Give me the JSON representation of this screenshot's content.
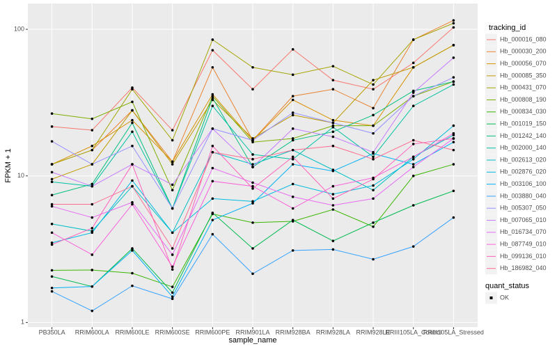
{
  "chart_data": {
    "type": "line",
    "log_y": true,
    "grid": true,
    "x_label": "sample_name",
    "y_label": "FPKM + 1",
    "legend_title": "tracking_id",
    "legend_position": "right",
    "shape_legend_title": "quant_status",
    "shape_legend_entries": [
      "OK"
    ],
    "categories": [
      "PB350LA",
      "RRIM600LA",
      "RRIM600LE",
      "RRIM600SE",
      "RRIM600PE",
      "RRIM901LA",
      "RRIM928BA",
      "RRIM928LA",
      "RRIM928LE",
      "RRIII105LA_Control",
      "RRIII105LA_Stressed"
    ],
    "ylim": [
      0.93,
      150
    ],
    "yticks": [
      1,
      10,
      100
    ],
    "series": [
      {
        "name": "Hb_000016_080",
        "color": "#F8766D",
        "values": [
          21.7,
          20.5,
          40,
          20.5,
          72,
          39,
          73,
          45,
          39,
          59,
          103
        ]
      },
      {
        "name": "Hb_000030_200",
        "color": "#EA8331",
        "values": [
          12,
          15,
          28,
          12.5,
          55,
          17.5,
          35,
          39,
          29,
          85,
          115
        ]
      },
      {
        "name": "Hb_000056_070",
        "color": "#D89000",
        "values": [
          12,
          16,
          24,
          12.5,
          36,
          17.5,
          33,
          24,
          22,
          55,
          78
        ]
      },
      {
        "name": "Hb_000085_350",
        "color": "#C09B00",
        "values": [
          9.5,
          12,
          28,
          12,
          33,
          18,
          26,
          23,
          45,
          55,
          78
        ]
      },
      {
        "name": "Hb_000431_070",
        "color": "#A3A500",
        "values": [
          12,
          15,
          39,
          17.5,
          85,
          55,
          49,
          56,
          42,
          85,
          110
        ]
      },
      {
        "name": "Hb_000808_190",
        "color": "#7CAE00",
        "values": [
          26.6,
          24.5,
          32,
          8,
          35,
          17,
          18,
          22,
          22,
          35,
          44
        ]
      },
      {
        "name": "Hb_000834_030",
        "color": "#39B600",
        "values": [
          2.27,
          2.28,
          2.17,
          1.75,
          5.5,
          4.8,
          4.9,
          5.9,
          4.5,
          10,
          12
        ]
      },
      {
        "name": "Hb_001019_150",
        "color": "#00BB4E",
        "values": [
          2.06,
          1.76,
          3.2,
          1.6,
          5.6,
          3.2,
          5,
          3.6,
          4.8,
          6.3,
          7.9
        ]
      },
      {
        "name": "Hb_001242_140",
        "color": "#00BF7D",
        "values": [
          7.4,
          8.8,
          23,
          6,
          34,
          11.5,
          17.5,
          20,
          26,
          38,
          44
        ]
      },
      {
        "name": "Hb_002000_140",
        "color": "#00C1A3",
        "values": [
          9.1,
          8.5,
          20,
          6,
          30,
          14,
          13,
          21.5,
          13.5,
          30,
          42
        ]
      },
      {
        "name": "Hb_002613_020",
        "color": "#00BFC4",
        "values": [
          4.7,
          4.2,
          8.5,
          4.1,
          14.5,
          12,
          15,
          11,
          8,
          13.5,
          19
        ]
      },
      {
        "name": "Hb_002876_020",
        "color": "#00BAE0",
        "values": [
          3.5,
          4.1,
          9.3,
          4.1,
          7,
          6.7,
          8.8,
          7.5,
          8.6,
          13,
          22
        ]
      },
      {
        "name": "Hb_003106_100",
        "color": "#00B0F6",
        "values": [
          1.72,
          1.76,
          3.1,
          1.5,
          5,
          6.5,
          12,
          10.8,
          14.2,
          12,
          17
        ]
      },
      {
        "name": "Hb_003880_040",
        "color": "#35A2FF",
        "values": [
          1.63,
          1.2,
          1.78,
          1.45,
          4,
          2.15,
          3.1,
          3.15,
          2.7,
          3.3,
          5.2
        ]
      },
      {
        "name": "Hb_005307_050",
        "color": "#9590FF",
        "values": [
          17.2,
          12,
          16,
          6,
          21,
          17.5,
          27,
          23,
          19.5,
          35,
          47
        ]
      },
      {
        "name": "Hb_007065_010",
        "color": "#C77CFF",
        "values": [
          10.6,
          8.5,
          12,
          8.7,
          21,
          11.5,
          21,
          18.5,
          14.5,
          37,
          64
        ]
      },
      {
        "name": "Hb_016734_070",
        "color": "#E76BF3",
        "values": [
          6.2,
          5.2,
          6.6,
          2.9,
          11.3,
          9,
          7.2,
          6.3,
          7,
          11.5,
          18
        ]
      },
      {
        "name": "Hb_087749_010",
        "color": "#FA62DB",
        "values": [
          4.1,
          2.9,
          6.4,
          2.4,
          9.2,
          8.5,
          6,
          8.5,
          9.7,
          13.5,
          19.5
        ]
      },
      {
        "name": "Hb_099136_010",
        "color": "#FF62BC",
        "values": [
          3.4,
          4.4,
          12,
          2.3,
          16,
          8.2,
          13.5,
          7,
          9.5,
          16.5,
          18
        ]
      },
      {
        "name": "Hb_186982_040",
        "color": "#FF6C91",
        "values": [
          6.4,
          6.4,
          8.5,
          3.2,
          14.5,
          13,
          15,
          16,
          13,
          17.5,
          15
        ]
      }
    ]
  }
}
